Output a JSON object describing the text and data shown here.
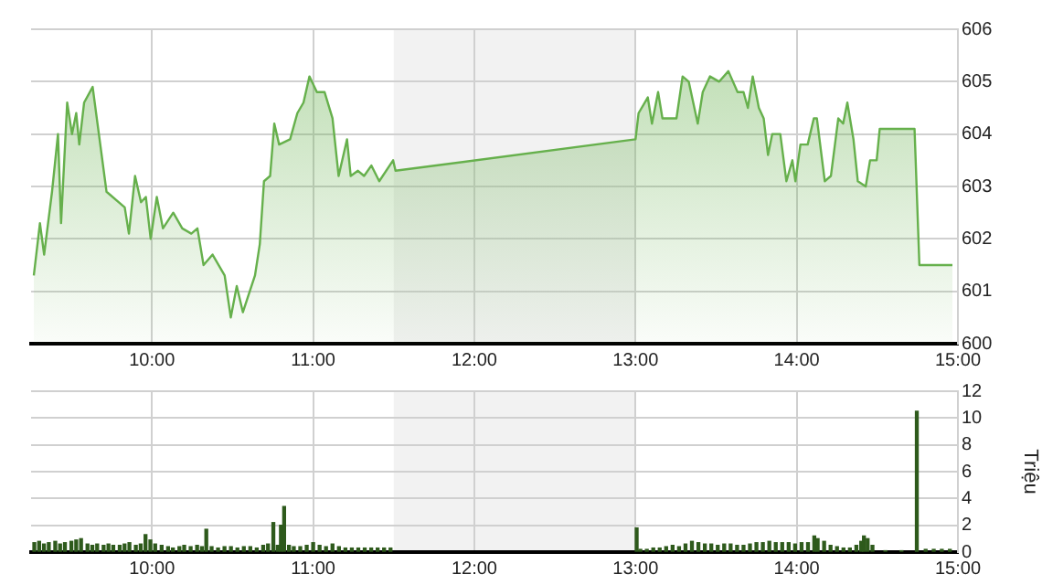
{
  "chart_data": [
    {
      "type": "area",
      "color": "#66b04c",
      "marker": "none",
      "grid": true,
      "x": [
        9.267,
        9.305,
        9.331,
        9.38,
        9.417,
        9.436,
        9.474,
        9.504,
        9.53,
        9.549,
        9.579,
        9.632,
        9.662,
        9.718,
        9.831,
        9.857,
        9.895,
        9.932,
        9.962,
        9.992,
        10.03,
        10.068,
        10.132,
        10.188,
        10.244,
        10.282,
        10.32,
        10.376,
        10.451,
        10.489,
        10.526,
        10.564,
        10.639,
        10.669,
        10.695,
        10.733,
        10.759,
        10.789,
        10.857,
        10.902,
        10.94,
        10.977,
        11.023,
        11.071,
        11.12,
        11.158,
        11.21,
        11.233,
        11.278,
        11.316,
        11.361,
        11.41,
        11.496,
        11.511,
        13.0,
        13.019,
        13.076,
        13.102,
        13.14,
        13.167,
        13.205,
        13.254,
        13.292,
        13.33,
        13.386,
        13.417,
        13.462,
        13.519,
        13.576,
        13.633,
        13.67,
        13.697,
        13.727,
        13.765,
        13.795,
        13.822,
        13.848,
        13.898,
        13.936,
        13.973,
        13.992,
        14.023,
        14.068,
        14.106,
        14.125,
        14.174,
        14.212,
        14.258,
        14.288,
        14.314,
        14.352,
        14.379,
        14.428,
        14.455,
        14.496,
        14.515,
        14.731,
        14.761,
        14.966
      ],
      "values": [
        601.3,
        602.3,
        601.7,
        602.9,
        604.0,
        602.3,
        604.6,
        604.0,
        604.4,
        603.8,
        604.6,
        604.9,
        604.2,
        602.9,
        602.6,
        602.1,
        603.2,
        602.7,
        602.8,
        602.0,
        602.8,
        602.2,
        602.5,
        602.2,
        602.1,
        602.2,
        601.5,
        601.7,
        601.3,
        600.5,
        601.1,
        600.6,
        601.3,
        601.9,
        603.1,
        603.2,
        604.2,
        603.8,
        603.9,
        604.4,
        604.6,
        605.1,
        604.8,
        604.8,
        604.3,
        603.2,
        603.9,
        603.2,
        603.3,
        603.2,
        603.4,
        603.1,
        603.5,
        603.3,
        603.9,
        604.4,
        604.7,
        604.2,
        604.8,
        604.3,
        604.3,
        604.3,
        605.1,
        605.0,
        604.2,
        604.8,
        605.1,
        605.0,
        605.2,
        604.8,
        604.8,
        604.5,
        605.1,
        604.5,
        604.3,
        603.6,
        604.0,
        604.0,
        603.1,
        603.5,
        603.1,
        603.8,
        603.8,
        604.3,
        604.3,
        603.1,
        603.2,
        604.3,
        604.2,
        604.6,
        603.9,
        603.1,
        603.0,
        603.5,
        603.5,
        604.1,
        604.1,
        601.5,
        601.5
      ],
      "xlim": [
        9.25,
        15
      ],
      "xticks": [
        {
          "value": 10,
          "label": "10:00"
        },
        {
          "value": 11,
          "label": "11:00"
        },
        {
          "value": 12,
          "label": "12:00"
        },
        {
          "value": 13,
          "label": "13:00"
        },
        {
          "value": 14,
          "label": "14:00"
        },
        {
          "value": 15,
          "label": "15:00"
        }
      ],
      "ylim": [
        600,
        606
      ],
      "yticks": [
        600,
        601,
        602,
        603,
        604,
        605,
        606
      ],
      "bands": [
        {
          "axis": "x",
          "from": 11.5,
          "to": 13,
          "color": "#f2f2f2"
        }
      ]
    },
    {
      "type": "bar",
      "color": "#2e5a1c",
      "grid": true,
      "ylabel": "Triệu",
      "x": [
        9.27,
        9.3,
        9.33,
        9.36,
        9.4,
        9.43,
        9.46,
        9.5,
        9.53,
        9.56,
        9.6,
        9.63,
        9.66,
        9.7,
        9.73,
        9.76,
        9.8,
        9.83,
        9.86,
        9.9,
        9.93,
        9.96,
        9.99,
        10.02,
        10.06,
        10.1,
        10.13,
        10.17,
        10.2,
        10.24,
        10.28,
        10.31,
        10.337,
        10.37,
        10.41,
        10.45,
        10.49,
        10.53,
        10.57,
        10.61,
        10.65,
        10.69,
        10.72,
        10.753,
        10.78,
        10.8,
        10.82,
        10.85,
        10.88,
        10.92,
        10.96,
        11.0,
        11.04,
        11.08,
        11.12,
        11.16,
        11.2,
        11.24,
        11.28,
        11.32,
        11.36,
        11.4,
        11.44,
        11.48,
        13.007,
        13.03,
        13.07,
        13.11,
        13.15,
        13.19,
        13.23,
        13.27,
        13.31,
        13.35,
        13.39,
        13.43,
        13.47,
        13.51,
        13.55,
        13.59,
        13.63,
        13.67,
        13.71,
        13.75,
        13.79,
        13.83,
        13.87,
        13.91,
        13.95,
        13.99,
        14.03,
        14.07,
        14.109,
        14.13,
        14.17,
        14.21,
        14.25,
        14.29,
        14.33,
        14.37,
        14.4,
        14.417,
        14.44,
        14.47,
        14.55,
        14.65,
        14.745,
        14.8,
        14.85,
        14.9,
        14.95
      ],
      "values": [
        0.7,
        0.8,
        0.6,
        0.7,
        0.8,
        0.6,
        0.7,
        0.8,
        0.9,
        1.0,
        0.6,
        0.5,
        0.6,
        0.5,
        0.6,
        0.5,
        0.5,
        0.6,
        0.7,
        0.5,
        0.6,
        1.3,
        0.9,
        0.6,
        0.5,
        0.4,
        0.3,
        0.4,
        0.5,
        0.4,
        0.5,
        0.4,
        1.7,
        0.4,
        0.3,
        0.4,
        0.4,
        0.3,
        0.4,
        0.4,
        0.3,
        0.5,
        0.6,
        2.2,
        0.5,
        2.0,
        3.4,
        0.5,
        0.4,
        0.4,
        0.5,
        0.7,
        0.5,
        0.4,
        0.6,
        0.4,
        0.3,
        0.3,
        0.3,
        0.3,
        0.3,
        0.3,
        0.3,
        0.3,
        1.8,
        0.2,
        0.2,
        0.3,
        0.3,
        0.4,
        0.5,
        0.4,
        0.6,
        0.8,
        0.7,
        0.6,
        0.6,
        0.5,
        0.6,
        0.6,
        0.5,
        0.5,
        0.6,
        0.7,
        0.7,
        0.8,
        0.7,
        0.7,
        0.7,
        0.6,
        0.7,
        0.7,
        1.2,
        1.0,
        0.8,
        0.5,
        0.4,
        0.3,
        0.3,
        0.5,
        0.8,
        1.2,
        1.0,
        0.5,
        0.1,
        0.1,
        10.5,
        0.2,
        0.2,
        0.2,
        0.2
      ],
      "xlim": [
        9.25,
        15
      ],
      "xticks": [
        {
          "value": 10,
          "label": "10:00"
        },
        {
          "value": 11,
          "label": "11:00"
        },
        {
          "value": 12,
          "label": "12:00"
        },
        {
          "value": 13,
          "label": "13:00"
        },
        {
          "value": 14,
          "label": "14:00"
        },
        {
          "value": 15,
          "label": "15:00"
        }
      ],
      "ylim": [
        0,
        12
      ],
      "yticks": [
        0,
        2,
        4,
        6,
        8,
        10,
        12
      ],
      "bands": [
        {
          "axis": "x",
          "from": 11.5,
          "to": 13,
          "color": "#f2f2f2"
        }
      ]
    }
  ]
}
